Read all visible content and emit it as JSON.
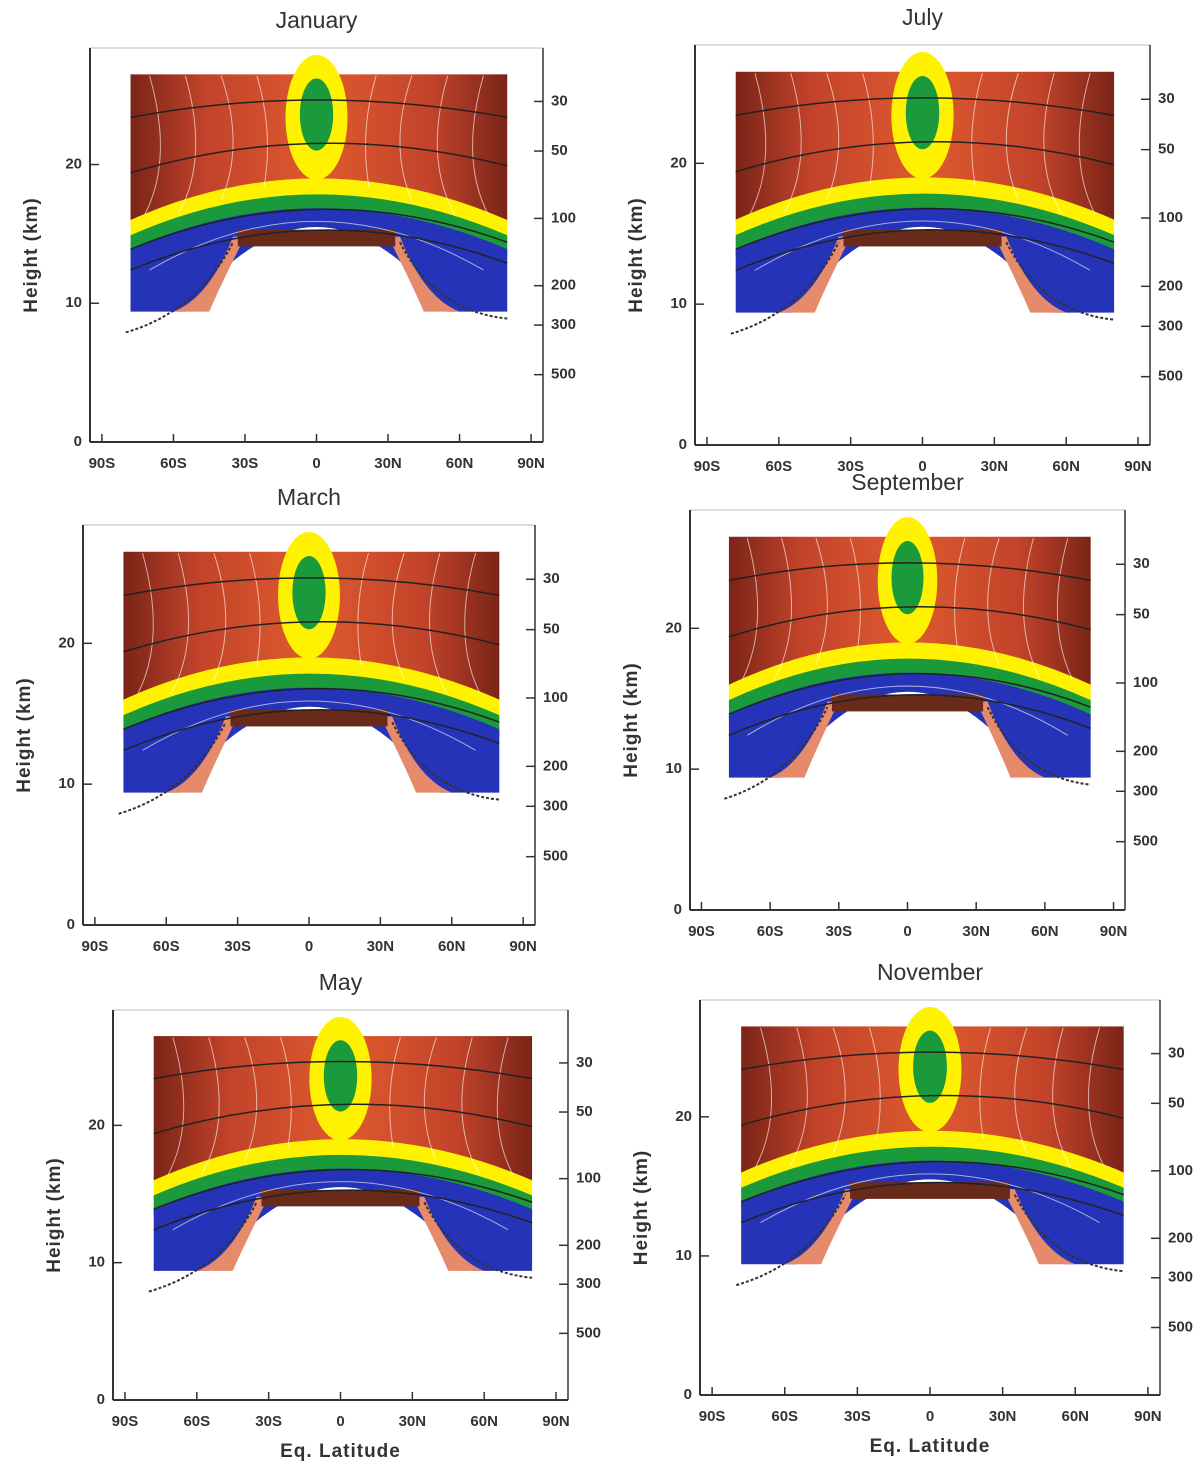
{
  "chart_data": [
    {
      "type": "contour",
      "title": "January",
      "y_label": "Height (km)",
      "xlim": [
        -95,
        95
      ],
      "xticks": [
        {
          "value": -90,
          "label": "90S"
        },
        {
          "value": -60,
          "label": "60S"
        },
        {
          "value": -30,
          "label": "30S"
        },
        0,
        {
          "value": 30,
          "label": "30N"
        },
        {
          "value": 60,
          "label": "60N"
        },
        {
          "value": 90,
          "label": "90N"
        }
      ],
      "ylim": [
        0,
        28.4
      ],
      "yticks": [
        0,
        10,
        20
      ],
      "y2lim": [
        1000,
        17.3
      ],
      "y2log": true,
      "y2ticks": [
        30,
        50,
        100,
        200,
        300,
        500
      ]
    },
    {
      "type": "contour",
      "title": "July",
      "y_label": "Height (km)",
      "xlim": [
        -95,
        95
      ],
      "xticks": [
        {
          "value": -90,
          "label": "90S"
        },
        {
          "value": -60,
          "label": "60S"
        },
        {
          "value": -30,
          "label": "30S"
        },
        0,
        {
          "value": 30,
          "label": "30N"
        },
        {
          "value": 60,
          "label": "60N"
        },
        {
          "value": 90,
          "label": "90N"
        }
      ],
      "ylim": [
        0,
        28.4
      ],
      "yticks": [
        0,
        10,
        20
      ],
      "y2lim": [
        1000,
        17.3
      ],
      "y2log": true,
      "y2ticks": [
        30,
        50,
        100,
        200,
        300,
        500
      ]
    },
    {
      "type": "contour",
      "title": "March",
      "y_label": "Height (km)",
      "xlim": [
        -95,
        95
      ],
      "xticks": [
        {
          "value": -90,
          "label": "90S"
        },
        {
          "value": -60,
          "label": "60S"
        },
        {
          "value": -30,
          "label": "30S"
        },
        0,
        {
          "value": 30,
          "label": "30N"
        },
        {
          "value": 60,
          "label": "60N"
        },
        {
          "value": 90,
          "label": "90N"
        }
      ],
      "ylim": [
        0,
        28.4
      ],
      "yticks": [
        0,
        10,
        20
      ],
      "y2lim": [
        1000,
        17.3
      ],
      "y2log": true,
      "y2ticks": [
        30,
        50,
        100,
        200,
        300,
        500
      ]
    },
    {
      "type": "contour",
      "title": "September",
      "y_label": "Height (km)",
      "xlim": [
        -95,
        95
      ],
      "xticks": [
        {
          "value": -90,
          "label": "90S"
        },
        {
          "value": -60,
          "label": "60S"
        },
        {
          "value": -30,
          "label": "30S"
        },
        0,
        {
          "value": 30,
          "label": "30N"
        },
        {
          "value": 60,
          "label": "60N"
        },
        {
          "value": 90,
          "label": "90N"
        }
      ],
      "ylim": [
        0,
        28.4
      ],
      "yticks": [
        0,
        10,
        20
      ],
      "y2lim": [
        1000,
        17.3
      ],
      "y2log": true,
      "y2ticks": [
        30,
        50,
        100,
        200,
        300,
        500
      ]
    },
    {
      "type": "contour",
      "title": "May",
      "y_label": "Height (km)",
      "x_label": "Eq. Latitude",
      "xlim": [
        -95,
        95
      ],
      "xticks": [
        {
          "value": -90,
          "label": "90S"
        },
        {
          "value": -60,
          "label": "60S"
        },
        {
          "value": -30,
          "label": "30S"
        },
        0,
        {
          "value": 30,
          "label": "30N"
        },
        {
          "value": 60,
          "label": "60N"
        },
        {
          "value": 90,
          "label": "90N"
        }
      ],
      "ylim": [
        0,
        28.4
      ],
      "yticks": [
        0,
        10,
        20
      ],
      "y2lim": [
        1000,
        17.3
      ],
      "y2log": true,
      "y2ticks": [
        30,
        50,
        100,
        200,
        300,
        500
      ]
    },
    {
      "type": "contour",
      "title": "November",
      "y_label": "Height (km)",
      "x_label": "Eq. Latitude",
      "xlim": [
        -95,
        95
      ],
      "xticks": [
        {
          "value": -90,
          "label": "90S"
        },
        {
          "value": -60,
          "label": "60S"
        },
        {
          "value": -30,
          "label": "30S"
        },
        0,
        {
          "value": 30,
          "label": "30N"
        },
        {
          "value": 60,
          "label": "60N"
        },
        {
          "value": 90,
          "label": "90N"
        }
      ],
      "ylim": [
        0,
        28.4
      ],
      "yticks": [
        0,
        10,
        20
      ],
      "y2lim": [
        1000,
        17.3
      ],
      "y2log": true,
      "y2ticks": [
        30,
        50,
        100,
        200,
        300,
        500
      ]
    }
  ]
}
